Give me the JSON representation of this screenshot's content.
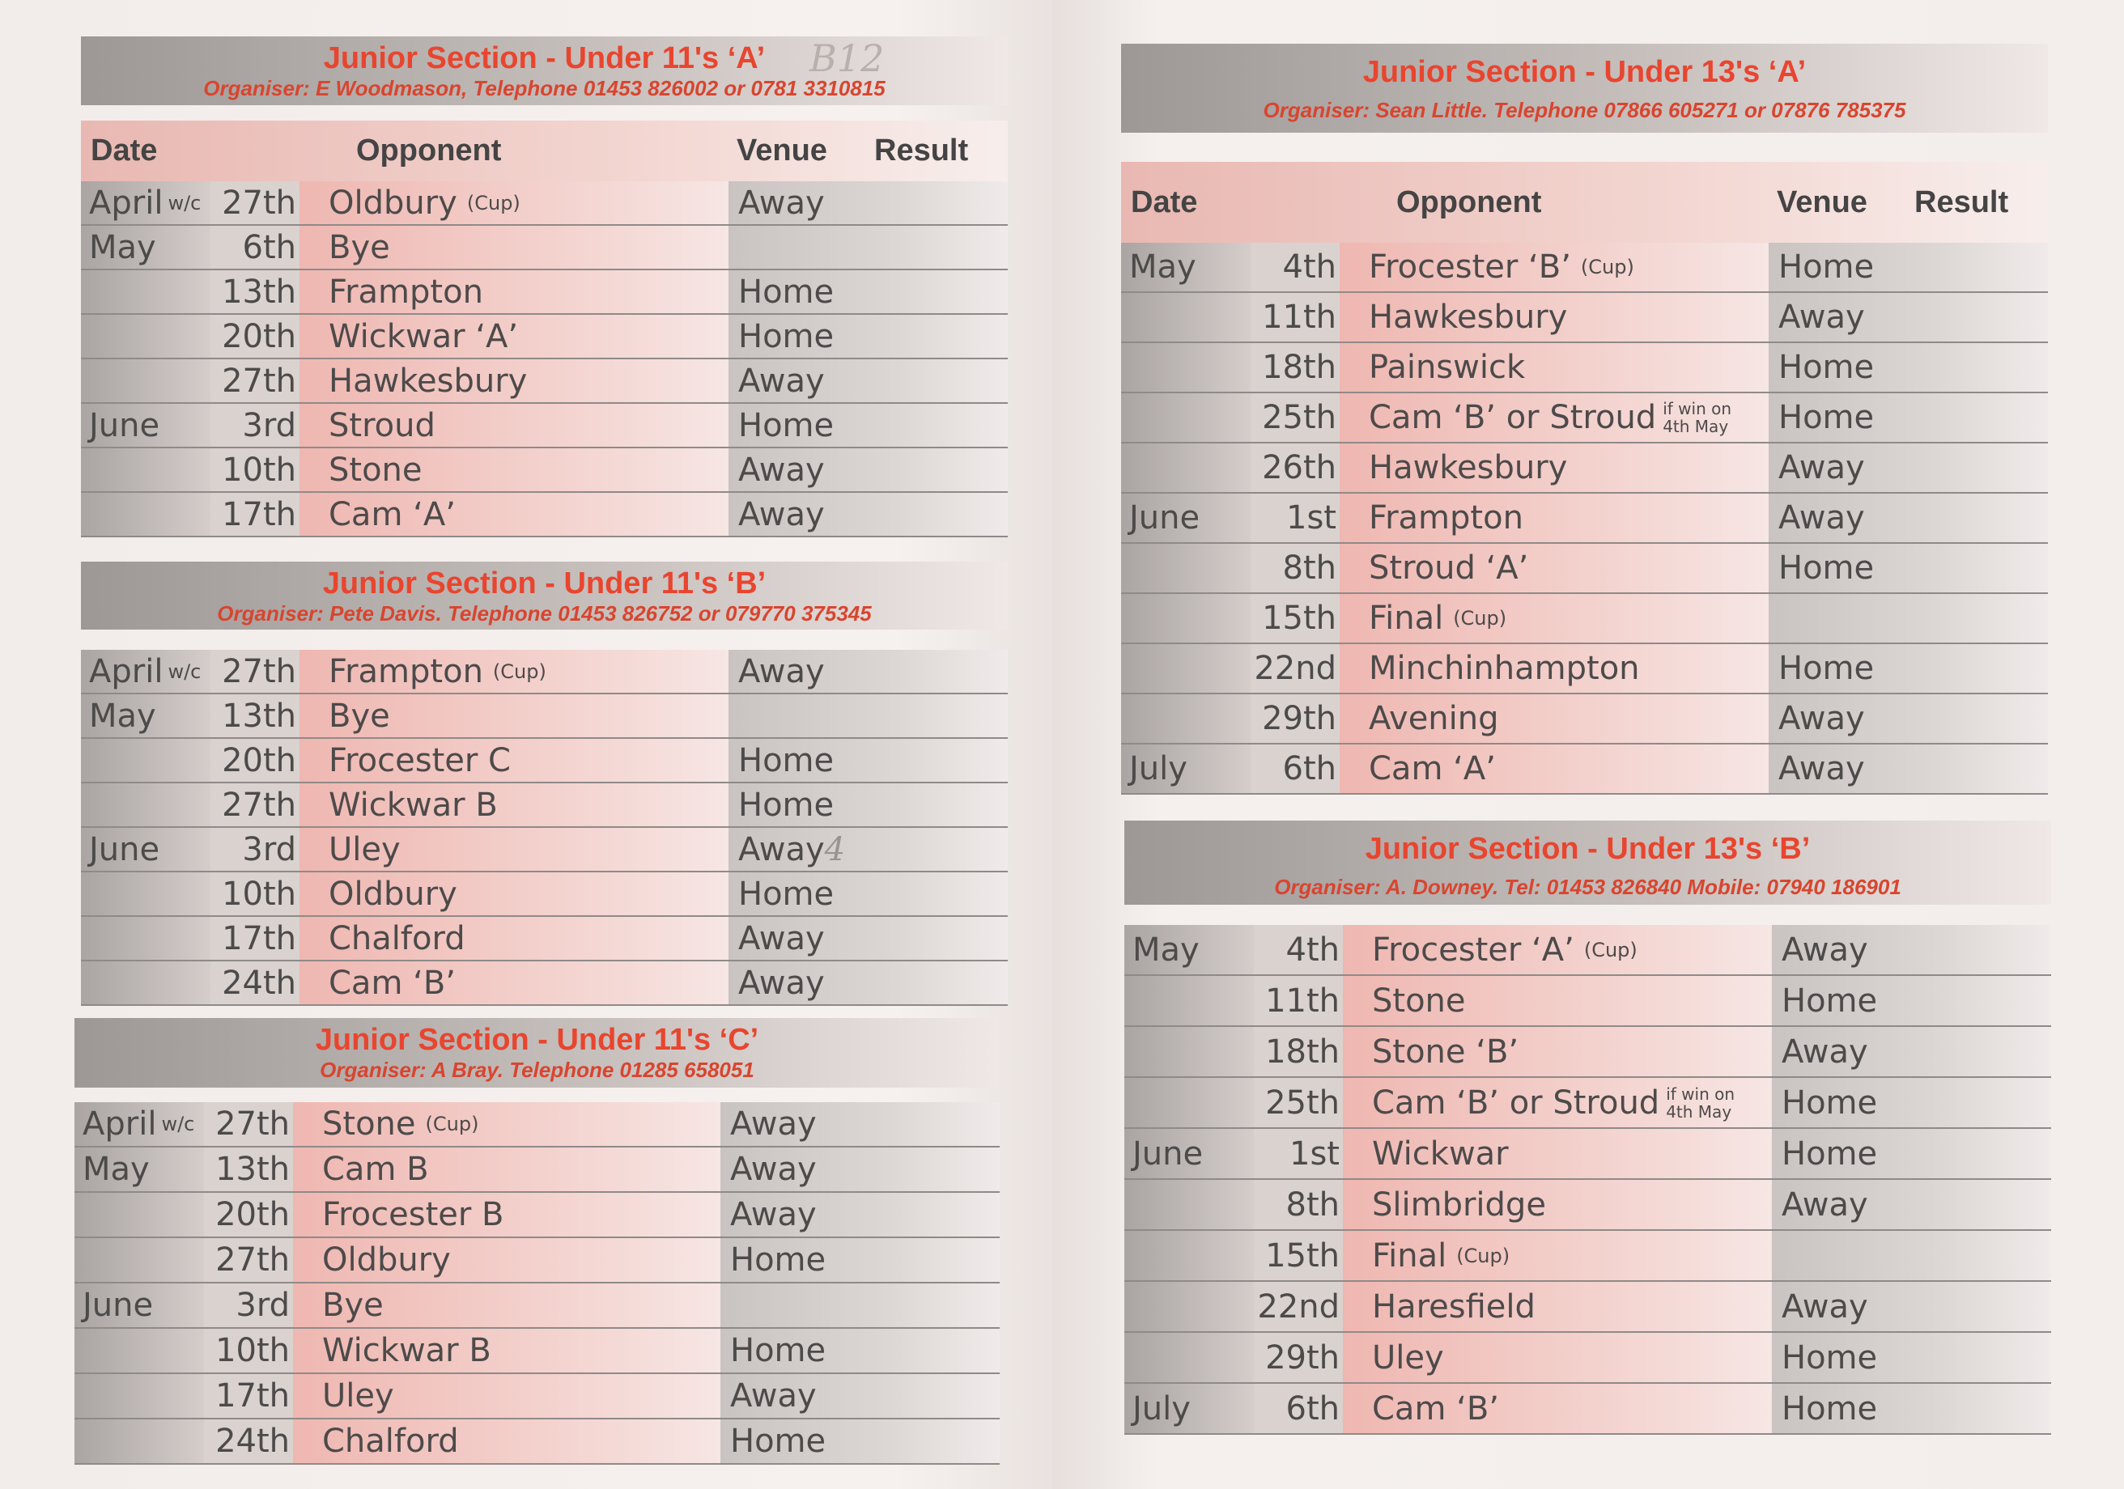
{
  "column_headers": {
    "date": "Date",
    "opponent": "Opponent",
    "venue": "Venue",
    "result": "Result"
  },
  "sections": [
    {
      "id": "u11a",
      "title": "Junior Section - Under 11's ‘A’",
      "organiser": "Organiser: E Woodmason, Telephone 01453 826002 or 0781 3310815",
      "handwritten": "B12",
      "rows": [
        {
          "month": "April",
          "wc": "w/c",
          "day": "27th",
          "opponent": "Oldbury",
          "cup": "(Cup)",
          "venue": "Away"
        },
        {
          "month": "May",
          "day": "6th",
          "opponent": "Bye",
          "venue": ""
        },
        {
          "month": "",
          "day": "13th",
          "opponent": "Frampton",
          "venue": "Home"
        },
        {
          "month": "",
          "day": "20th",
          "opponent": "Wickwar ‘A’",
          "venue": "Home"
        },
        {
          "month": "",
          "day": "27th",
          "opponent": "Hawkesbury",
          "venue": "Away"
        },
        {
          "month": "June",
          "day": "3rd",
          "opponent": "Stroud",
          "venue": "Home"
        },
        {
          "month": "",
          "day": "10th",
          "opponent": "Stone",
          "venue": "Away"
        },
        {
          "month": "",
          "day": "17th",
          "opponent": "Cam ‘A’",
          "venue": "Away"
        }
      ]
    },
    {
      "id": "u11b",
      "title": "Junior Section - Under 11's ‘B’",
      "organiser": "Organiser: Pete Davis. Telephone 01453 826752 or 079770 375345",
      "rows": [
        {
          "month": "April",
          "wc": "w/c",
          "day": "27th",
          "opponent": "Frampton",
          "cup": "(Cup)",
          "venue": "Away"
        },
        {
          "month": "May",
          "day": "13th",
          "opponent": "Bye",
          "venue": ""
        },
        {
          "month": "",
          "day": "20th",
          "opponent": "Frocester C",
          "venue": "Home"
        },
        {
          "month": "",
          "day": "27th",
          "opponent": "Wickwar B",
          "venue": "Home"
        },
        {
          "month": "June",
          "day": "3rd",
          "opponent": "Uley",
          "venue": "Away",
          "result": "4"
        },
        {
          "month": "",
          "day": "10th",
          "opponent": "Oldbury",
          "venue": "Home"
        },
        {
          "month": "",
          "day": "17th",
          "opponent": "Chalford",
          "venue": "Away"
        },
        {
          "month": "",
          "day": "24th",
          "opponent": "Cam ‘B’",
          "venue": "Away"
        }
      ]
    },
    {
      "id": "u11c",
      "title": "Junior Section - Under 11's ‘C’",
      "organiser": "Organiser: A Bray. Telephone 01285 658051",
      "rows": [
        {
          "month": "April",
          "wc": "w/c",
          "day": "27th",
          "opponent": "Stone",
          "cup": "(Cup)",
          "venue": "Away"
        },
        {
          "month": "May",
          "day": "13th",
          "opponent": "Cam B",
          "venue": "Away"
        },
        {
          "month": "",
          "day": "20th",
          "opponent": "Frocester B",
          "venue": "Away"
        },
        {
          "month": "",
          "day": "27th",
          "opponent": "Oldbury",
          "venue": "Home"
        },
        {
          "month": "June",
          "day": "3rd",
          "opponent": "Bye",
          "venue": ""
        },
        {
          "month": "",
          "day": "10th",
          "opponent": "Wickwar B",
          "venue": "Home"
        },
        {
          "month": "",
          "day": "17th",
          "opponent": "Uley",
          "venue": "Away"
        },
        {
          "month": "",
          "day": "24th",
          "opponent": "Chalford",
          "venue": "Home"
        }
      ]
    },
    {
      "id": "u13a",
      "title": "Junior Section - Under 13's ‘A’",
      "organiser": "Organiser: Sean Little. Telephone 07866 605271 or 07876 785375",
      "rows": [
        {
          "month": "May",
          "day": "4th",
          "opponent": "Frocester ‘B’",
          "cup": "(Cup)",
          "venue": "Home"
        },
        {
          "month": "",
          "day": "11th",
          "opponent": "Hawkesbury",
          "venue": "Away"
        },
        {
          "month": "",
          "day": "18th",
          "opponent": "Painswick",
          "venue": "Home"
        },
        {
          "month": "",
          "day": "25th",
          "opponent": "Cam ‘B’ or Stroud",
          "note": "if win on 4th May",
          "venue": "Home"
        },
        {
          "month": "",
          "day": "26th",
          "opponent": "Hawkesbury",
          "venue": "Away"
        },
        {
          "month": "June",
          "day": "1st",
          "opponent": "Frampton",
          "venue": "Away"
        },
        {
          "month": "",
          "day": "8th",
          "opponent": "Stroud ‘A’",
          "venue": "Home"
        },
        {
          "month": "",
          "day": "15th",
          "opponent": "Final",
          "cup": "(Cup)",
          "venue": ""
        },
        {
          "month": "",
          "day": "22nd",
          "opponent": "Minchinhampton",
          "venue": "Home"
        },
        {
          "month": "",
          "day": "29th",
          "opponent": "Avening",
          "venue": "Away"
        },
        {
          "month": "July",
          "day": "6th",
          "opponent": "Cam ‘A’",
          "venue": "Away"
        }
      ]
    },
    {
      "id": "u13b",
      "title": "Junior Section - Under 13's ‘B’",
      "organiser": "Organiser: A. Downey. Tel: 01453 826840  Mobile: 07940 186901",
      "rows": [
        {
          "month": "May",
          "day": "4th",
          "opponent": "Frocester ‘A’",
          "cup": "(Cup)",
          "venue": "Away"
        },
        {
          "month": "",
          "day": "11th",
          "opponent": "Stone",
          "venue": "Home"
        },
        {
          "month": "",
          "day": "18th",
          "opponent": "Stone ‘B’",
          "venue": "Away"
        },
        {
          "month": "",
          "day": "25th",
          "opponent": "Cam ‘B’ or Stroud",
          "note": "if win on 4th May",
          "venue": "Home"
        },
        {
          "month": "June",
          "day": "1st",
          "opponent": "Wickwar",
          "venue": "Home"
        },
        {
          "month": "",
          "day": "8th",
          "opponent": "Slimbridge",
          "venue": "Away"
        },
        {
          "month": "",
          "day": "15th",
          "opponent": "Final",
          "cup": "(Cup)",
          "venue": ""
        },
        {
          "month": "",
          "day": "22nd",
          "opponent": "Haresfield",
          "venue": "Away"
        },
        {
          "month": "",
          "day": "29th",
          "opponent": "Uley",
          "venue": "Home"
        },
        {
          "month": "July",
          "day": "6th",
          "opponent": "Cam ‘B’",
          "venue": "Home"
        }
      ]
    }
  ]
}
